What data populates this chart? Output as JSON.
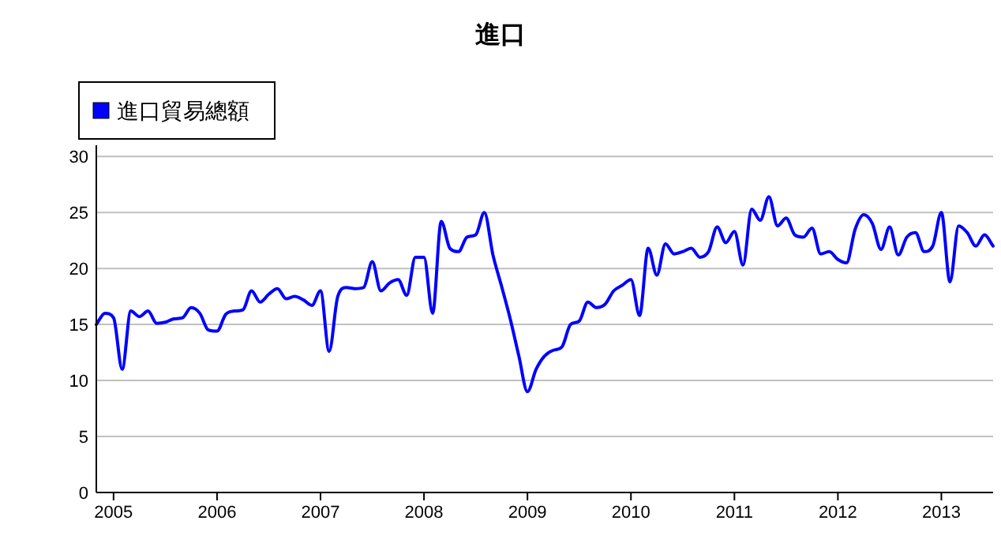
{
  "chart_data": {
    "type": "line",
    "title": "進口",
    "legend": "top left",
    "grid": "y",
    "marker": "none",
    "line_style": "solid",
    "xlim": [
      "2004-11",
      "2013-07"
    ],
    "ylim": [
      0,
      31
    ],
    "yticks": [
      0,
      5,
      10,
      15,
      20,
      25,
      30
    ],
    "xticks": [
      {
        "value": "2005-01",
        "label": "2005"
      },
      {
        "value": "2006-01",
        "label": "2006"
      },
      {
        "value": "2007-01",
        "label": "2007"
      },
      {
        "value": "2008-01",
        "label": "2008"
      },
      {
        "value": "2009-01",
        "label": "2009"
      },
      {
        "value": "2010-01",
        "label": "2010"
      },
      {
        "value": "2011-01",
        "label": "2011"
      },
      {
        "value": "2012-01",
        "label": "2012"
      },
      {
        "value": "2013-01",
        "label": "2013"
      }
    ],
    "x": [
      "2004-11",
      "2004-12",
      "2005-01",
      "2005-02",
      "2005-03",
      "2005-04",
      "2005-05",
      "2005-06",
      "2005-07",
      "2005-08",
      "2005-09",
      "2005-10",
      "2005-11",
      "2005-12",
      "2006-01",
      "2006-02",
      "2006-03",
      "2006-04",
      "2006-05",
      "2006-06",
      "2006-07",
      "2006-08",
      "2006-09",
      "2006-10",
      "2006-11",
      "2006-12",
      "2007-01",
      "2007-02",
      "2007-03",
      "2007-04",
      "2007-05",
      "2007-06",
      "2007-07",
      "2007-08",
      "2007-09",
      "2007-10",
      "2007-11",
      "2007-12",
      "2008-01",
      "2008-02",
      "2008-03",
      "2008-04",
      "2008-05",
      "2008-06",
      "2008-07",
      "2008-08",
      "2008-09",
      "2008-10",
      "2008-11",
      "2008-12",
      "2009-01",
      "2009-02",
      "2009-03",
      "2009-04",
      "2009-05",
      "2009-06",
      "2009-07",
      "2009-08",
      "2009-09",
      "2009-10",
      "2009-11",
      "2009-12",
      "2010-01",
      "2010-02",
      "2010-03",
      "2010-04",
      "2010-05",
      "2010-06",
      "2010-07",
      "2010-08",
      "2010-09",
      "2010-10",
      "2010-11",
      "2010-12",
      "2011-01",
      "2011-02",
      "2011-03",
      "2011-04",
      "2011-05",
      "2011-06",
      "2011-07",
      "2011-08",
      "2011-09",
      "2011-10",
      "2011-11",
      "2011-12",
      "2012-01",
      "2012-02",
      "2012-03",
      "2012-04",
      "2012-05",
      "2012-06",
      "2012-07",
      "2012-08",
      "2012-09",
      "2012-10",
      "2012-11",
      "2012-12",
      "2013-01",
      "2013-02",
      "2013-03",
      "2013-04",
      "2013-05",
      "2013-06",
      "2013-07"
    ],
    "series": [
      {
        "name": "進口貿易總額",
        "color": "#0000ff",
        "values": [
          15.0,
          16.0,
          15.6,
          11.0,
          16.2,
          15.7,
          16.2,
          15.1,
          15.2,
          15.5,
          15.6,
          16.5,
          16.0,
          14.5,
          14.4,
          15.9,
          16.2,
          16.3,
          18.0,
          17.0,
          17.7,
          18.2,
          17.3,
          17.5,
          17.2,
          16.7,
          18.0,
          12.6,
          17.5,
          18.3,
          18.2,
          18.3,
          20.6,
          18.0,
          18.7,
          19.0,
          17.6,
          21.0,
          21.0,
          16.0,
          24.2,
          21.8,
          21.5,
          22.8,
          23.0,
          25.0,
          21.2,
          18.4,
          15.5,
          12.2,
          9.0,
          11.0,
          12.2,
          12.7,
          13.0,
          15.0,
          15.3,
          17.0,
          16.5,
          16.8,
          18.0,
          18.5,
          19.0,
          15.8,
          21.8,
          19.4,
          22.2,
          21.3,
          21.5,
          21.8,
          21.0,
          21.5,
          23.7,
          22.3,
          23.3,
          20.3,
          25.3,
          24.3,
          26.4,
          23.8,
          24.5,
          23.0,
          22.8,
          23.6,
          21.3,
          21.5,
          20.8,
          20.5,
          23.5,
          24.8,
          24.0,
          21.7,
          23.7,
          21.2,
          22.8,
          23.2,
          21.5,
          22.0,
          25.0,
          18.8,
          23.8,
          23.2,
          22.0,
          23.0,
          22.0
        ]
      }
    ]
  }
}
